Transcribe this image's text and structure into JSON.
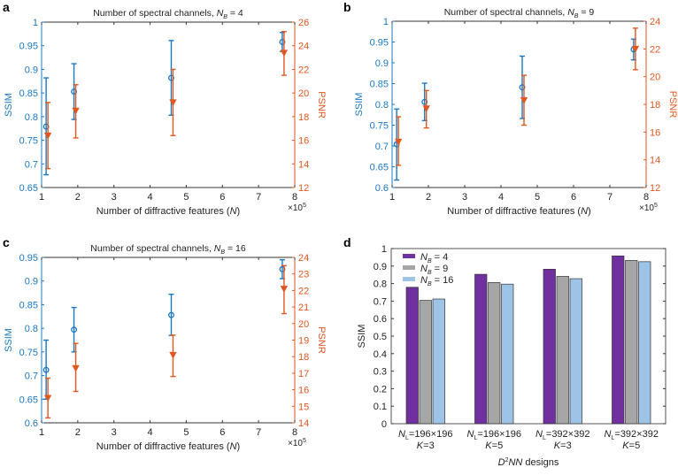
{
  "colors": {
    "ssim": "#1a78c2",
    "psnr": "#e0561f",
    "nb4": "#7030a0",
    "nb9": "#a6a6a6",
    "nb16": "#9dc3e6",
    "axis": "#333333"
  },
  "chart_data": [
    {
      "panel": "a",
      "type": "scatter",
      "title": {
        "prefix": "Number of spectral channels, ",
        "var": "N",
        "sub": "B",
        "suffix": " = 4"
      },
      "xlabel": {
        "prefix": "Number of diffractive features (",
        "var": "N",
        "suffix": ")"
      },
      "xmult": {
        "base": "×10",
        "exp": "5"
      },
      "ylabel_left": "SSIM",
      "ylabel_right": "PSNR",
      "xlim": [
        1,
        8
      ],
      "xticks": [
        1,
        2,
        3,
        4,
        5,
        6,
        7,
        8
      ],
      "ylim_left": [
        0.65,
        1
      ],
      "yticks_left": [
        0.65,
        0.7,
        0.75,
        0.8,
        0.85,
        0.9,
        0.95,
        1
      ],
      "ylim_right": [
        12,
        26
      ],
      "yticks_right": [
        12,
        14,
        16,
        18,
        20,
        22,
        24,
        26
      ],
      "x": [
        1.15,
        1.92,
        4.61,
        7.68
      ],
      "ssim": {
        "mean": [
          0.779,
          0.853,
          0.882,
          0.958
        ],
        "low": [
          0.677,
          0.794,
          0.803,
          0.938
        ],
        "high": [
          0.882,
          0.912,
          0.961,
          0.978
        ]
      },
      "psnr": {
        "mean": [
          16.4,
          18.5,
          19.2,
          23.4
        ],
        "low": [
          13.6,
          16.2,
          16.4,
          21.5
        ],
        "high": [
          19.2,
          20.7,
          22.0,
          25.2
        ]
      }
    },
    {
      "panel": "b",
      "type": "scatter",
      "title": {
        "prefix": "Number of spectral channels, ",
        "var": "N",
        "sub": "B",
        "suffix": " = 9"
      },
      "xlabel": {
        "prefix": "Number of diffractive features (",
        "var": "N",
        "suffix": ")"
      },
      "xmult": {
        "base": "×10",
        "exp": "5"
      },
      "ylabel_left": "SSIM",
      "ylabel_right": "PSNR",
      "xlim": [
        1,
        8
      ],
      "xticks": [
        1,
        2,
        3,
        4,
        5,
        6,
        7,
        8
      ],
      "ylim_left": [
        0.6,
        1
      ],
      "yticks_left": [
        0.6,
        0.65,
        0.7,
        0.75,
        0.8,
        0.85,
        0.9,
        0.95,
        1
      ],
      "ylim_right": [
        12,
        24
      ],
      "yticks_right": [
        12,
        14,
        16,
        18,
        20,
        22,
        24
      ],
      "x": [
        1.15,
        1.92,
        4.61,
        7.68
      ],
      "ssim": {
        "mean": [
          0.704,
          0.806,
          0.841,
          0.932
        ],
        "low": [
          0.618,
          0.761,
          0.766,
          0.907
        ],
        "high": [
          0.789,
          0.851,
          0.916,
          0.957
        ]
      },
      "psnr": {
        "mean": [
          15.3,
          17.7,
          18.3,
          22.0
        ],
        "low": [
          13.6,
          16.3,
          16.5,
          20.5
        ],
        "high": [
          17.1,
          19.0,
          20.1,
          23.5
        ]
      }
    },
    {
      "panel": "c",
      "type": "scatter",
      "title": {
        "prefix": "Number of spectral channels, ",
        "var": "N",
        "sub": "B",
        "suffix": " = 16"
      },
      "xlabel": {
        "prefix": "Number of diffractive features (",
        "var": "N",
        "suffix": ")"
      },
      "xmult": {
        "base": "×10",
        "exp": "5"
      },
      "ylabel_left": "SSIM",
      "ylabel_right": "PSNR",
      "xlim": [
        1,
        8
      ],
      "xticks": [
        1,
        2,
        3,
        4,
        5,
        6,
        7,
        8
      ],
      "ylim_left": [
        0.6,
        0.95
      ],
      "yticks_left": [
        0.6,
        0.65,
        0.7,
        0.75,
        0.8,
        0.85,
        0.9,
        0.95
      ],
      "ylim_right": [
        14,
        24
      ],
      "yticks_right": [
        14,
        15,
        16,
        17,
        18,
        19,
        20,
        21,
        22,
        23,
        24
      ],
      "x": [
        1.15,
        1.92,
        4.61,
        7.68
      ],
      "ssim": {
        "mean": [
          0.712,
          0.797,
          0.828,
          0.925
        ],
        "low": [
          0.65,
          0.75,
          0.785,
          0.905
        ],
        "high": [
          0.775,
          0.844,
          0.872,
          0.945
        ]
      },
      "psnr": {
        "mean": [
          15.5,
          17.3,
          18.1,
          22.1
        ],
        "low": [
          14.3,
          15.9,
          16.8,
          20.6
        ],
        "high": [
          16.7,
          18.8,
          19.3,
          23.5
        ]
      }
    },
    {
      "panel": "d",
      "type": "bar",
      "ylabel": "SSIM",
      "xlabel": {
        "var": "D",
        "sup": "2",
        "var2": "NN",
        "suffix": " designs"
      },
      "ylim": [
        0,
        1
      ],
      "yticks": [
        0,
        0.1,
        0.2,
        0.3,
        0.4,
        0.5,
        0.6,
        0.7,
        0.8,
        0.9,
        1
      ],
      "legend_position": "top-left",
      "categories": [
        {
          "var": "N",
          "sub": "L",
          "rest": "=196×196",
          "k": "K",
          "krest": "=3"
        },
        {
          "var": "N",
          "sub": "L",
          "rest": "=196×196",
          "k": "K",
          "krest": "=5"
        },
        {
          "var": "N",
          "sub": "L",
          "rest": "=392×392",
          "k": "K",
          "krest": "=3"
        },
        {
          "var": "N",
          "sub": "L",
          "rest": "=392×392",
          "k": "K",
          "krest": "=5"
        }
      ],
      "series": [
        {
          "name": {
            "var": "N",
            "sub": "B",
            "suffix": " = 4"
          },
          "values": [
            0.779,
            0.853,
            0.882,
            0.958
          ]
        },
        {
          "name": {
            "var": "N",
            "sub": "B",
            "suffix": " = 9"
          },
          "values": [
            0.704,
            0.806,
            0.841,
            0.932
          ]
        },
        {
          "name": {
            "var": "N",
            "sub": "B",
            "suffix": " = 16"
          },
          "values": [
            0.712,
            0.797,
            0.828,
            0.925
          ]
        }
      ]
    }
  ]
}
